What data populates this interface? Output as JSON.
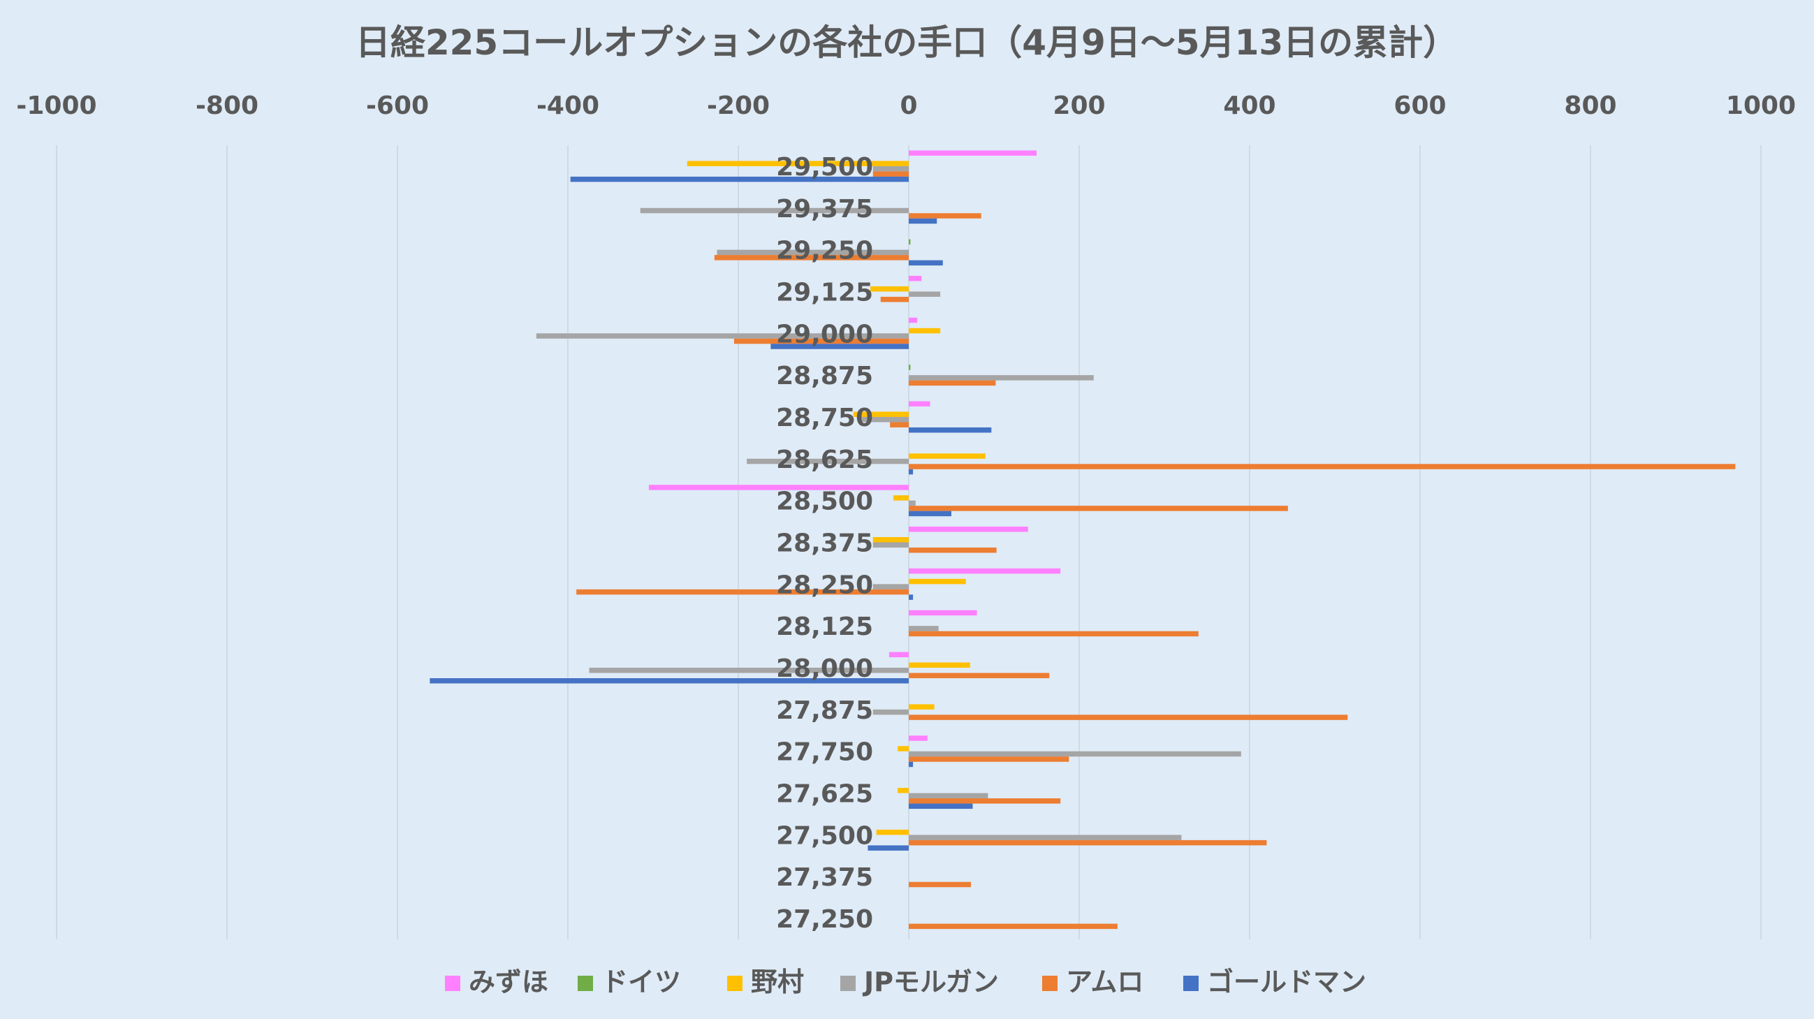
{
  "chart_data": {
    "type": "bar",
    "orientation": "horizontal",
    "title": "日経225コールオプションの各社の手口（4月9日～5月13日の累計）",
    "xlim": [
      -1000,
      1000
    ],
    "xticks": [
      -1000,
      -800,
      -600,
      -400,
      -200,
      0,
      200,
      400,
      600,
      800,
      1000
    ],
    "x_axis_position": "top",
    "grid": true,
    "legend_position": "bottom",
    "categories": [
      "29,500",
      "29,375",
      "29,250",
      "29,125",
      "29,000",
      "28,875",
      "28,750",
      "28,625",
      "28,500",
      "28,375",
      "28,250",
      "28,125",
      "28,000",
      "27,875",
      "27,750",
      "27,625",
      "27,500",
      "27,375",
      "27,250"
    ],
    "series": [
      {
        "name": "みずほ",
        "color": "#ff80ff",
        "values": [
          150,
          0,
          0,
          15,
          10,
          0,
          25,
          0,
          -305,
          140,
          178,
          80,
          -23,
          0,
          22,
          0,
          0,
          0,
          0
        ]
      },
      {
        "name": "ドイツ",
        "color": "#70ad47",
        "values": [
          0,
          0,
          2,
          0,
          0,
          2,
          0,
          0,
          0,
          0,
          0,
          0,
          0,
          0,
          0,
          0,
          0,
          0,
          0
        ]
      },
      {
        "name": "野村",
        "color": "#ffc000",
        "values": [
          -260,
          0,
          0,
          -45,
          37,
          0,
          -65,
          90,
          -18,
          -42,
          67,
          0,
          72,
          30,
          -13,
          -13,
          -38,
          0,
          0
        ]
      },
      {
        "name": "JPモルガン",
        "color": "#a5a5a5",
        "values": [
          -42,
          -315,
          -225,
          37,
          -437,
          217,
          -55,
          -190,
          8,
          -42,
          -42,
          35,
          -375,
          -42,
          390,
          93,
          320,
          0,
          0
        ]
      },
      {
        "name": "アムロ",
        "color": "#ed7d31",
        "values": [
          -42,
          85,
          -228,
          -33,
          -205,
          102,
          -22,
          970,
          445,
          103,
          -390,
          340,
          165,
          515,
          188,
          178,
          420,
          73,
          245
        ]
      },
      {
        "name": "ゴールドマン",
        "color": "#4472c4",
        "values": [
          -397,
          33,
          40,
          0,
          -162,
          0,
          97,
          5,
          50,
          0,
          5,
          0,
          -562,
          0,
          5,
          75,
          -48,
          0,
          0
        ]
      }
    ]
  }
}
